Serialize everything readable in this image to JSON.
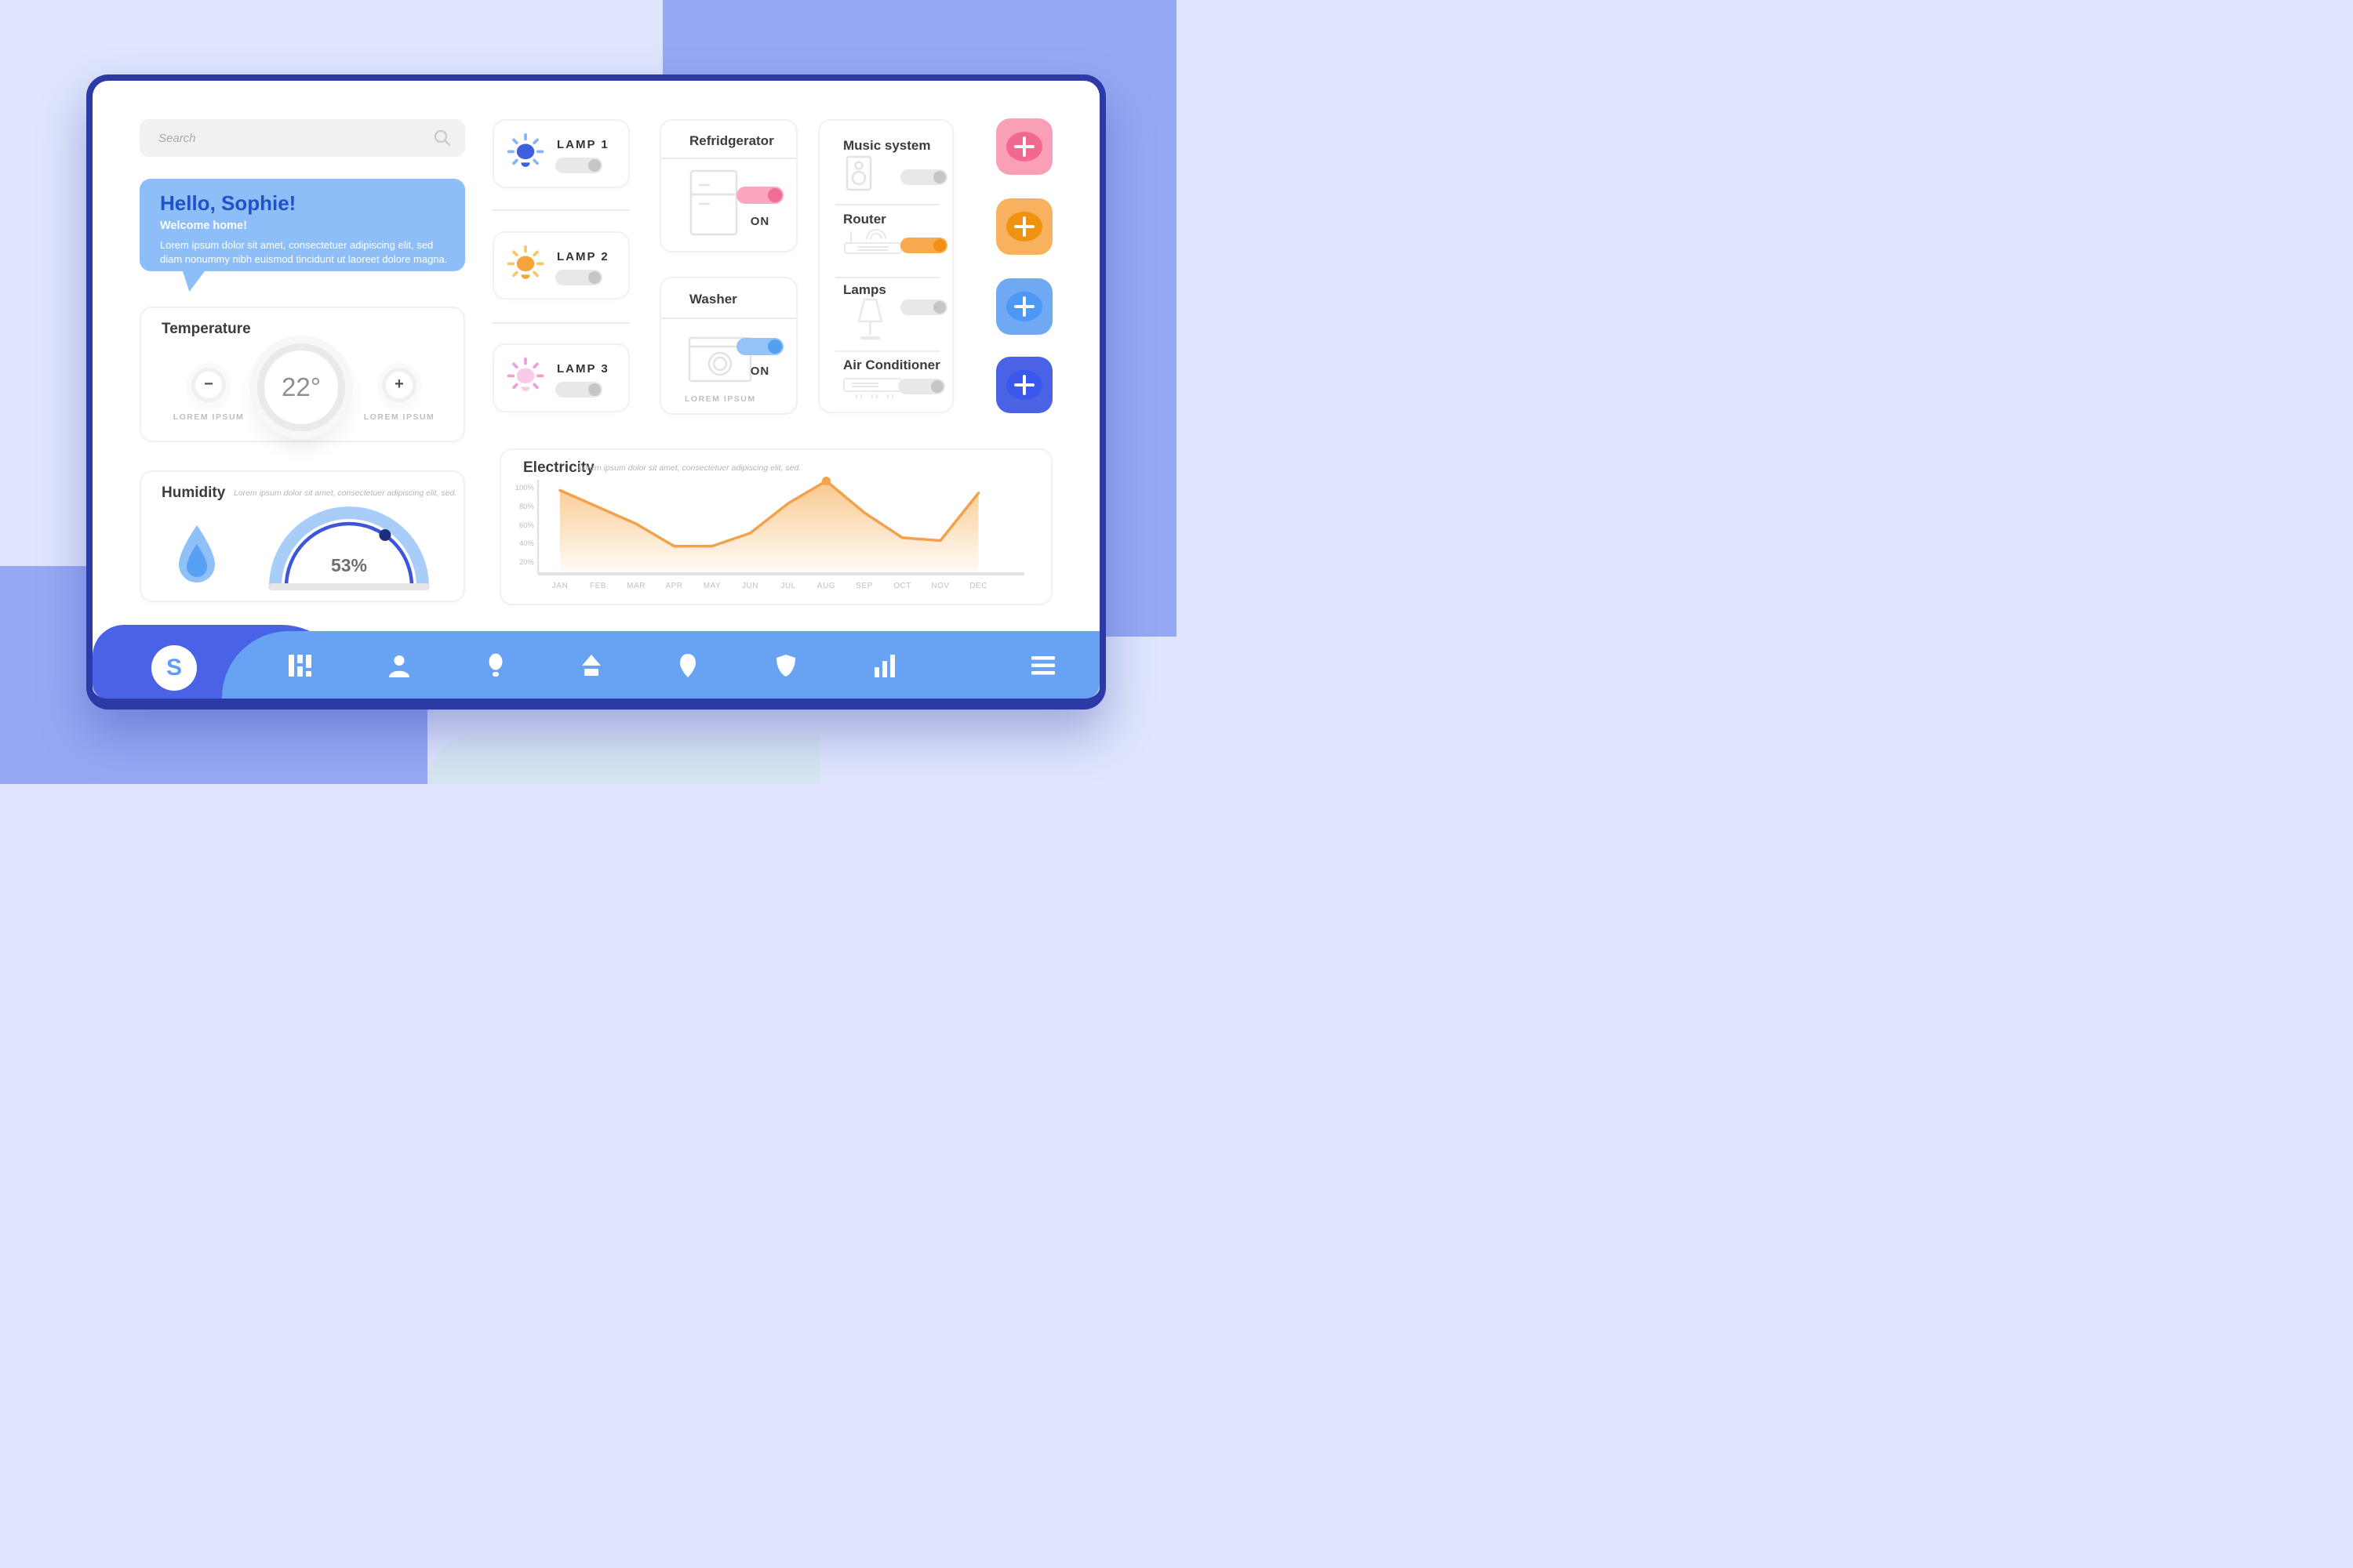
{
  "window": {
    "logo_letter": "S"
  },
  "search": {
    "placeholder": "Search"
  },
  "greeting": {
    "title": "Hello, Sophie!",
    "subtitle": "Welcome home!",
    "body": "Lorem ipsum dolor sit amet, consectetuer adipiscing elit, sed diam nonummy nibh euismod tincidunt ut laoreet dolore magna."
  },
  "temperature": {
    "title": "Temperature",
    "value": "22°",
    "minus": "−",
    "plus": "+",
    "minus_label": "LOREM IPSUM",
    "plus_label": "LOREM IPSUM"
  },
  "humidity": {
    "title": "Humidity",
    "subtitle": "Lorem ipsum dolor sit amet, consectetuer adipiscing elit, sed.",
    "value": "53%"
  },
  "lamps": [
    {
      "label": "LAMP 1",
      "on": false,
      "bulb_color": "#3E5FE2",
      "ray_color": "#8AB2F6"
    },
    {
      "label": "LAMP 2",
      "on": false,
      "bulb_color": "#F7A33C",
      "ray_color": "#FBC566"
    },
    {
      "label": "LAMP 3",
      "on": false,
      "bulb_color": "#FACAE6",
      "ray_color": "#F29CD6"
    }
  ],
  "refrigerator": {
    "title": "Refridgerator",
    "status": "ON",
    "toggle": {
      "track": "#FBA6BC",
      "knob": "#F06D95"
    }
  },
  "washer": {
    "title": "Washer",
    "status": "ON",
    "footnote": "LOREM IPSUM",
    "toggle": {
      "track": "#94C3F8",
      "knob": "#55A0EE"
    }
  },
  "devices": {
    "items": [
      {
        "label": "Music system",
        "on": false
      },
      {
        "label": "Router",
        "on": true,
        "toggle": {
          "track": "#F9A94E",
          "knob": "#F29013"
        }
      },
      {
        "label": "Lamps",
        "on": false
      },
      {
        "label": "Air Conditioner",
        "on": false
      }
    ]
  },
  "quick_add": {
    "buttons": [
      {
        "name": "add-pink",
        "bg": "#F9A0B6",
        "inner": "#F2698F"
      },
      {
        "name": "add-orange",
        "bg": "#F8B15E",
        "inner": "#F19110"
      },
      {
        "name": "add-light-blue",
        "bg": "#6FA9F4",
        "inner": "#4D97F5"
      },
      {
        "name": "add-indigo",
        "bg": "#4A63E5",
        "inner": "#3A57EE"
      }
    ]
  },
  "chart_data": {
    "type": "area",
    "title": "Electricity",
    "subtitle": "Lorem ipsum dolor sit amet, consectetuer adipiscing elit, sed.",
    "categories": [
      "JAN",
      "FEB",
      "MAR",
      "APR",
      "MAY",
      "JUN",
      "JUL",
      "AUG",
      "SEP",
      "OCT",
      "NOV",
      "DEC"
    ],
    "values": [
      98,
      80,
      62,
      38,
      38,
      52,
      84,
      108,
      74,
      47,
      44,
      95
    ],
    "unit": "%",
    "yticks": [
      100,
      80,
      60,
      40,
      20
    ],
    "ylim": [
      0,
      110
    ],
    "grid": false,
    "legend": false,
    "line_color": "#F3A14C",
    "fill_color": "#F8BB72",
    "peak": {
      "category": "AUG",
      "value": 108
    }
  },
  "nav": {
    "icons": [
      "columns",
      "user",
      "bulb",
      "home",
      "location",
      "shield",
      "chart-bars",
      "menu"
    ]
  },
  "colors": {
    "card_border": "#2C3AA6",
    "nav_dark": "#4A63E6",
    "nav_light": "#67A3F2",
    "greeting_blue": "#8DBEF8",
    "background": "#DFE5FC",
    "background_accent": "#97A8F3",
    "toggle_track_off": "#E8E8E8",
    "toggle_knob_off": "#C6C6C6",
    "gauge_band": "#A9CDF9",
    "gauge_arc": "#3D55D8",
    "gauge_dot": "#1C2E7E"
  }
}
